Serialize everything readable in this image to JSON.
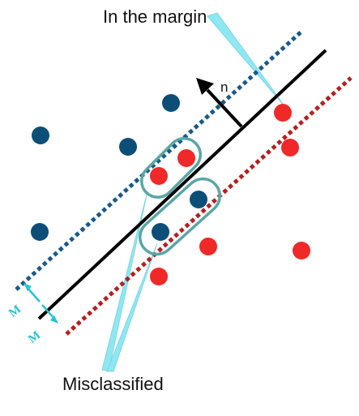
{
  "labels": {
    "in_margin": "In the margin",
    "misclassified": "Misclassified",
    "normal": "n",
    "margin_symbol": "M"
  },
  "colors": {
    "class_blue": "#0d4e78",
    "class_red": "#f02828",
    "boundary": "#000000",
    "margin_blue": "#1a5a8a",
    "margin_red": "#b52020",
    "highlight_ellipse": "#5aa6a6",
    "callout": "#8ee8f2",
    "margin_arrow": "#27c3d6"
  },
  "legend": []
}
